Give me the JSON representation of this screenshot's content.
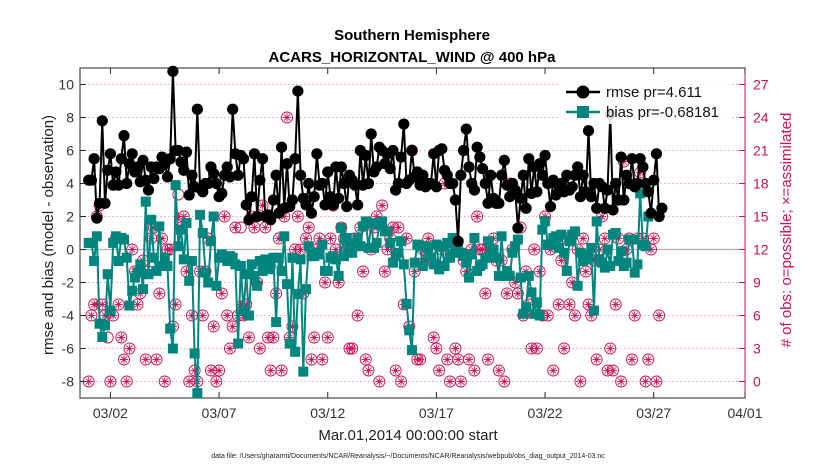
{
  "chart_data": {
    "type": "line",
    "title": "Southern Hemisphere",
    "subtitle": "ACARS_HORIZONTAL_WIND @ 400 hPa",
    "xlabel": "Mar.01,2014 00:00:00 start",
    "ylabel": "rmse and bias (model - observation)",
    "ylabel_right": "# of obs: o=possible; ×=assimilated",
    "footnote": "data file: /Users/gharamti/Documents/NCAR/Reanalysis/~/Documents/NCAR/Reanalysis/webpub/obs_diag_output_2014-03.nc",
    "xlim": [
      0.6,
      31.2
    ],
    "x_ticks": [
      {
        "day": 2,
        "label": "03/02"
      },
      {
        "day": 7,
        "label": "03/07"
      },
      {
        "day": 12,
        "label": "03/12"
      },
      {
        "day": 17,
        "label": "03/17"
      },
      {
        "day": 22,
        "label": "03/22"
      },
      {
        "day": 27,
        "label": "03/27"
      },
      {
        "day": 32,
        "label": "04/01"
      }
    ],
    "ylim": [
      -9,
      11
    ],
    "y_ticks": [
      -8,
      -6,
      -4,
      -2,
      0,
      2,
      4,
      6,
      8,
      10
    ],
    "ylim_right": [
      -1.5,
      28.5
    ],
    "y_ticks_right": [
      0,
      3,
      6,
      9,
      12,
      15,
      18,
      21,
      24,
      27
    ],
    "step_days": 0.125,
    "series": [
      {
        "name": "rmse",
        "legend": "rmse pr=4.611",
        "color": "#000000",
        "values": [
          4.2,
          4.2,
          5.5,
          1.9,
          2.8,
          7.8,
          2.8,
          4.8,
          5.8,
          3.9,
          4.7,
          3.9,
          5.5,
          6.9,
          4.0,
          5.2,
          5.8,
          4.7,
          5.0,
          4.1,
          5.4,
          4.2,
          3.6,
          5.0,
          4.3,
          5.0,
          4.9,
          5.6,
          5.2,
          4.4,
          5.5,
          10.8,
          6.0,
          6.0,
          5.3,
          4.8,
          5.9,
          3.3,
          4.5,
          3.8,
          8.5,
          3.7,
          3.5,
          4.0,
          4.0,
          5.0,
          4.6,
          4.0,
          3.2,
          3.4,
          4.5,
          5.0,
          4.4,
          8.5,
          5.8,
          4.5,
          5.7,
          5.5,
          2.7,
          1.8,
          3.2,
          5.8,
          2.0,
          4.2,
          5.5,
          2.0,
          2.1,
          1.8,
          3.0,
          4.5,
          2.2,
          6.2,
          2.5,
          5.2,
          2.6,
          3.0,
          5.5,
          9.6,
          4.5,
          3.1,
          2.7,
          4.0,
          2.2,
          3.2,
          5.8,
          3.9,
          4.0,
          2.7,
          4.7,
          3.2,
          2.7,
          5.0,
          3.1,
          5.0,
          4.0,
          2.6,
          4.5,
          4.2,
          3.9,
          2.7,
          6.0,
          3.9,
          5.7,
          4.0,
          7.0,
          4.7,
          5.0,
          6.2,
          6.0,
          5.2,
          5.8,
          4.9,
          6.0,
          3.6,
          4.0,
          5.6,
          7.6,
          4.0,
          4.2,
          6.0,
          4.4,
          4.7,
          3.9,
          4.5,
          3.8,
          4.0,
          4.0,
          5.8,
          3.8,
          6.0,
          6.1,
          4.8,
          4.5,
          4.0,
          4.0,
          3.0,
          0.5,
          4.5,
          6.0,
          7.3,
          5.0,
          4.0,
          3.6,
          6.2,
          5.6,
          4.9,
          4.0,
          2.8,
          4.5,
          3.1,
          2.8,
          2.8,
          4.5,
          5.4,
          3.9,
          3.2,
          4.0,
          3.6,
          1.3,
          3.1,
          4.5,
          2.5,
          5.5,
          3.4,
          5.0,
          3.5,
          5.2,
          4.5,
          5.7,
          4.0,
          2.6,
          4.2,
          3.3,
          3.9,
          4.0,
          3.5,
          4.5,
          3.6,
          3.8,
          4.5,
          5.0,
          3.2,
          4.5,
          3.5,
          7.2,
          3.2,
          4.0,
          2.5,
          4.0,
          3.8,
          2.5,
          3.6,
          8.2,
          2.4,
          4.0,
          3.0,
          5.6,
          3.0,
          4.5,
          4.0,
          5.5,
          3.8,
          4.0,
          5.5,
          5.0,
          4.0,
          3.5,
          2.2,
          4.2,
          5.8,
          2.0,
          2.5
        ]
      },
      {
        "name": "bias",
        "legend": "bias pr=-0.68181",
        "color": "#00867f",
        "values": [
          0.4,
          0.4,
          -0.7,
          0.8,
          -4.5,
          -5.3,
          -4.6,
          -1.5,
          -3.7,
          0.4,
          0.8,
          -0.7,
          0.7,
          0.6,
          -0.5,
          -3.4,
          -2.5,
          -1.7,
          -1.4,
          -0.9,
          -2.4,
          2.9,
          -1.5,
          1.8,
          -0.5,
          -1.3,
          1.4,
          -1.0,
          -0.5,
          -1.0,
          -4.8,
          -6.0,
          3.9,
          0.2,
          1.2,
          -0.6,
          1.6,
          -1.9,
          -0.7,
          -6.3,
          -8.7,
          2.1,
          1.0,
          -1.4,
          -2.0,
          0.5,
          2.0,
          -2.2,
          -0.5,
          -0.3,
          -0.5,
          -0.7,
          -0.4,
          -0.5,
          -0.9,
          -5.7,
          -1.0,
          -3.7,
          -1.5,
          -4.0,
          -0.9,
          -1.6,
          -2.2,
          -0.7,
          -1.3,
          -0.6,
          -1.2,
          -0.9,
          -0.5,
          -4.4,
          -0.5,
          -1.3,
          0.8,
          -2.1,
          -5.7,
          -0.5,
          -6.2,
          -2.7,
          -0.6,
          -7.4,
          -2.4,
          0.2,
          -0.4,
          -0.4,
          -0.2,
          -0.3,
          0.3,
          -1.3,
          -1.3,
          -0.5,
          -0.4,
          -0.6,
          -1.6,
          1.3,
          -0.4,
          0.7,
          0.3,
          -0.2,
          0.4,
          0.7,
          0.2,
          1.4,
          1.7,
          0.1,
          1.6,
          0.1,
          0.4,
          1.5,
          1.7,
          1.1,
          1.1,
          0.4,
          -0.8,
          -0.4,
          -0.2,
          0.5,
          -0.9,
          -3.3,
          -4.9,
          -6.1,
          -0.8,
          0.3,
          0.2,
          -1.0,
          0.2,
          0.1,
          -0.5,
          -0.9,
          0.3,
          -1.2,
          0.2,
          -1.0,
          0.4,
          -0.5,
          0.7,
          -0.2,
          0.4,
          -0.2,
          -0.4,
          -0.8,
          -1.7,
          -0.3,
          0.7,
          -1.3,
          -1.0,
          -0.9,
          -0.5,
          0.5,
          -0.4,
          0.0,
          -0.5,
          -1.6,
          0.8,
          -1.6,
          -1.3,
          -1.6,
          -0.2,
          0.2,
          0.6,
          -1.7,
          -3.9,
          -3.5,
          -1.6,
          -2.6,
          -3.9,
          -3.2,
          -4.0,
          1.2,
          1.7,
          0.3,
          0.3,
          0.7,
          0.8,
          0.1,
          0.9,
          -0.2,
          -1.3,
          0.5,
          0.9,
          1.1,
          -2.2,
          -0.2,
          -0.7,
          -0.6,
          -0.3,
          0.1,
          -3.7,
          1.7,
          -0.6,
          -0.8,
          -1.1,
          0.0,
          -1.0,
          0.9,
          1.0,
          -0.7,
          -0.1,
          -1.0,
          -0.8,
          0.6,
          0.6,
          -1.4,
          -0.9,
          3.4,
          0.3,
          0.2,
          2.0
        ]
      },
      {
        "name": "obs_possible",
        "marker": "o",
        "color": "#cc1155",
        "values": [
          0,
          6,
          7,
          15,
          16,
          7,
          6,
          4,
          0,
          6,
          13,
          7,
          4,
          2,
          0,
          3,
          12,
          10,
          7,
          8,
          11,
          2,
          10,
          13,
          14,
          2,
          8,
          13,
          0,
          12,
          12,
          5,
          7,
          17,
          14,
          15,
          10,
          0,
          6,
          1,
          0,
          10,
          6,
          10,
          13,
          1,
          5,
          0,
          1,
          8,
          15,
          6,
          3,
          5,
          14,
          6,
          14,
          6,
          7,
          4,
          15,
          14,
          9,
          3,
          16,
          14,
          4,
          1,
          4,
          8,
          13,
          1,
          15,
          24,
          4,
          5,
          12,
          15,
          12,
          8,
          13,
          14,
          2,
          4,
          12,
          13,
          2,
          9,
          4,
          13,
          16,
          12,
          9,
          14,
          13,
          12,
          3,
          3,
          13,
          6,
          14,
          10,
          2,
          1,
          12,
          14,
          15,
          0,
          16,
          10,
          12,
          13,
          14,
          1,
          14,
          0,
          7,
          13,
          5,
          21,
          10,
          2,
          2,
          12,
          11,
          13,
          11,
          4,
          3,
          1,
          12,
          18,
          2,
          0,
          12,
          3,
          2,
          0,
          11,
          10,
          2,
          12,
          1,
          15,
          12,
          12,
          8,
          2,
          12,
          13,
          11,
          1,
          11,
          0,
          8,
          18,
          12,
          9,
          8,
          14,
          6,
          10,
          7,
          3,
          12,
          3,
          10,
          6,
          15,
          6,
          12,
          1,
          13,
          7,
          11,
          3,
          13,
          7,
          9,
          6,
          12,
          0,
          13,
          10,
          7,
          6,
          11,
          2,
          12,
          15,
          13,
          1,
          3,
          1,
          7,
          13,
          0,
          20,
          12,
          13,
          2,
          6,
          13,
          19,
          13,
          0,
          2,
          12,
          13,
          0,
          6
        ]
      },
      {
        "name": "obs_assimilated",
        "marker": "*",
        "color": "#cc1155",
        "values": [
          0,
          6,
          7,
          7,
          16,
          7,
          6,
          6,
          0,
          6,
          13,
          7,
          4,
          2,
          0,
          3,
          12,
          10,
          7,
          8,
          11,
          2,
          10,
          13,
          14,
          2,
          8,
          13,
          0,
          12,
          12,
          5,
          7,
          15,
          14,
          15,
          10,
          0,
          6,
          1,
          0,
          10,
          6,
          10,
          13,
          1,
          5,
          0,
          1,
          8,
          15,
          6,
          3,
          5,
          14,
          6,
          7,
          6,
          7,
          4,
          15,
          14,
          9,
          3,
          16,
          14,
          4,
          1,
          4,
          8,
          13,
          1,
          15,
          24,
          4,
          5,
          12,
          15,
          12,
          8,
          13,
          14,
          2,
          4,
          12,
          13,
          2,
          9,
          4,
          13,
          16,
          12,
          9,
          14,
          13,
          12,
          3,
          3,
          13,
          6,
          14,
          10,
          2,
          1,
          12,
          14,
          15,
          0,
          16,
          10,
          12,
          13,
          14,
          1,
          14,
          0,
          7,
          13,
          5,
          21,
          10,
          2,
          2,
          12,
          11,
          13,
          11,
          4,
          3,
          1,
          12,
          18,
          2,
          0,
          12,
          3,
          2,
          0,
          11,
          10,
          2,
          12,
          1,
          15,
          12,
          12,
          8,
          2,
          12,
          13,
          11,
          1,
          11,
          0,
          8,
          18,
          12,
          9,
          8,
          14,
          6,
          10,
          7,
          3,
          12,
          3,
          10,
          6,
          15,
          6,
          12,
          1,
          13,
          7,
          11,
          3,
          13,
          7,
          9,
          6,
          12,
          0,
          13,
          10,
          7,
          6,
          11,
          2,
          12,
          15,
          13,
          1,
          3,
          1,
          7,
          13,
          0,
          20,
          12,
          13,
          2,
          6,
          13,
          19,
          13,
          0,
          2,
          12,
          13,
          0,
          6
        ]
      }
    ]
  }
}
